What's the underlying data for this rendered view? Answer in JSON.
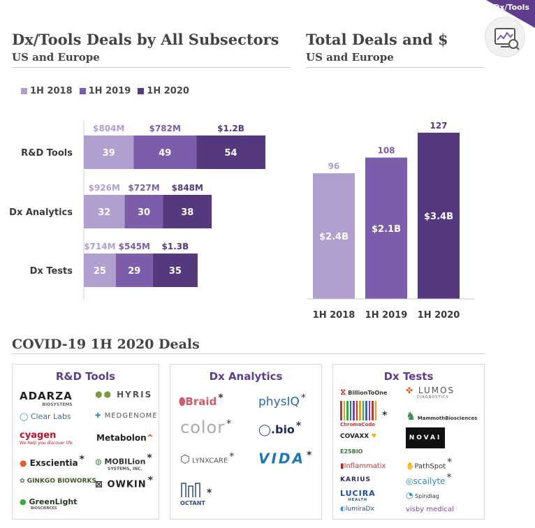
{
  "badge": {
    "label": "Dx/Tools",
    "icon": "analytics-monitor-icon"
  },
  "left_header": {
    "title": "Dx/Tools Deals by All Subsectors",
    "subtitle": "US and Europe"
  },
  "right_header": {
    "title": "Total Deals and $",
    "subtitle": "US and Europe"
  },
  "colors": {
    "h2018": "#b09fcf",
    "h2019": "#7b5daa",
    "h2020": "#55397e",
    "accent": "#5e3e8c"
  },
  "chart_data": [
    {
      "type": "bar",
      "orientation": "horizontal",
      "stacked": true,
      "categories": [
        "R&D Tools",
        "Dx Analytics",
        "Dx Tests"
      ],
      "series": [
        {
          "name": "1H 2018",
          "values": [
            39,
            32,
            25
          ],
          "dollars": [
            "$804M",
            "$926M",
            "$714M"
          ]
        },
        {
          "name": "1H 2019",
          "values": [
            49,
            30,
            29
          ],
          "dollars": [
            "$782M",
            "$727M",
            "$545M"
          ]
        },
        {
          "name": "1H 2020",
          "values": [
            54,
            38,
            35
          ],
          "dollars": [
            "$1.2B",
            "$848M",
            "$1.3B"
          ]
        }
      ],
      "legend": "top-left"
    },
    {
      "type": "bar",
      "categories": [
        "1H 2018",
        "1H 2019",
        "1H 2020"
      ],
      "values": [
        96,
        108,
        127
      ],
      "dollars": [
        "$2.4B",
        "$2.1B",
        "$3.4B"
      ]
    }
  ],
  "covid": {
    "title": "COVID-19 1H 2020 Deals",
    "panels": [
      {
        "title": "R&D Tools",
        "logos": [
          {
            "text": "ADARZA",
            "sub": "BIOSYSTEMS",
            "star": false
          },
          {
            "text": "HYRIS",
            "star": false
          },
          {
            "text": "Clear Labs",
            "star": false
          },
          {
            "text": "MEDGENOME",
            "star": false
          },
          {
            "text": "cyagen",
            "sub": "We help you discover life",
            "star": false
          },
          {
            "text": "Metabolon",
            "star": false
          },
          {
            "text": "Exscientia",
            "star": true
          },
          {
            "text": "MOBILion",
            "sub": "SYSTEMS, INC.",
            "star": true
          },
          {
            "text": "GINKGO BIOWORKS",
            "star": false
          },
          {
            "text": "OWKIN",
            "star": true
          },
          {
            "text": "GreenLight",
            "sub": "BIOSCIENCES",
            "star": false
          }
        ]
      },
      {
        "title": "Dx Analytics",
        "logos": [
          {
            "text": "Braid",
            "star": true
          },
          {
            "text": "physIQ",
            "star": true
          },
          {
            "text": "color",
            "star": true
          },
          {
            "text": "bio",
            "star": true
          },
          {
            "text": "LYNXCARE",
            "star": true
          },
          {
            "text": "VIDA",
            "star": true
          },
          {
            "text": "OCTANT",
            "star": true
          }
        ]
      },
      {
        "title": "Dx Tests",
        "logos": [
          {
            "text": "BillionToOne",
            "star": false
          },
          {
            "text": "LUMOS",
            "sub": "DIAGNOSTICS",
            "star": false
          },
          {
            "text": "ChromaCode",
            "star": true
          },
          {
            "text": "MammothBiosciences",
            "star": false
          },
          {
            "text": "COVAXX",
            "star": false
          },
          {
            "text": "NOVAI",
            "star": false
          },
          {
            "text": "E25BIO",
            "star": false
          },
          {
            "text": "Inflammatix",
            "star": false
          },
          {
            "text": "PathSpot",
            "star": true
          },
          {
            "text": "KARIUS",
            "star": false
          },
          {
            "text": "scailyte",
            "star": true
          },
          {
            "text": "LUCIRA",
            "sub": "HEALTH",
            "star": false
          },
          {
            "text": "Spindiag",
            "star": false
          },
          {
            "text": "lumiraDx",
            "star": false
          },
          {
            "text": "visby medical",
            "star": false
          }
        ]
      }
    ]
  }
}
